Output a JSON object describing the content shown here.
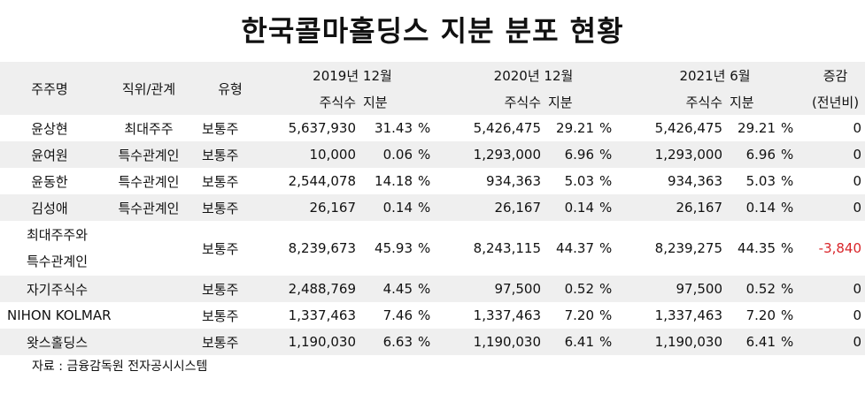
{
  "title": "한국콜마홀딩스 지분 분포 현황",
  "header": {
    "shareholder": "주주명",
    "position": "직위/관계",
    "type": "유형",
    "periods": [
      "2019년 12월",
      "2020년 12월",
      "2021년 6월"
    ],
    "shares": "주식수",
    "stake": "지분",
    "change_line1": "증감",
    "change_line2": "(전년비)"
  },
  "rows": [
    {
      "name": "윤상현",
      "relation": "최대주주",
      "type": "보통주",
      "s2019": "5,637,930",
      "p2019": "31.43",
      "u2019": "%",
      "s2020": "5,426,475",
      "p2020": "29.21",
      "u2020": "%",
      "s2021": "5,426,475",
      "p2021": "29.21",
      "u2021": "%",
      "change": "0"
    },
    {
      "name": "윤여원",
      "relation": "특수관계인",
      "type": "보통주",
      "s2019": "10,000",
      "p2019": "0.06",
      "u2019": "%",
      "s2020": "1,293,000",
      "p2020": "6.96",
      "u2020": "%",
      "s2021": "1,293,000",
      "p2021": "6.96",
      "u2021": "%",
      "change": "0"
    },
    {
      "name": "윤동한",
      "relation": "특수관계인",
      "type": "보통주",
      "s2019": "2,544,078",
      "p2019": "14.18",
      "u2019": "%",
      "s2020": "934,363",
      "p2020": "5.03",
      "u2020": "%",
      "s2021": "934,363",
      "p2021": "5.03",
      "u2021": "%",
      "change": "0"
    },
    {
      "name": "김성애",
      "relation": "특수관계인",
      "type": "보통주",
      "s2019": "26,167",
      "p2019": "0.14",
      "u2019": "%",
      "s2020": "26,167",
      "p2020": "0.14",
      "u2020": "%",
      "s2021": "26,167",
      "p2021": "0.14",
      "u2021": "%",
      "change": "0"
    },
    {
      "name_line1": "최대주주와",
      "name_line2": "특수관계인",
      "relation": "",
      "type": "보통주",
      "s2019": "8,239,673",
      "p2019": "45.93",
      "u2019": "%",
      "s2020": "8,243,115",
      "p2020": "44.37",
      "u2020": "%",
      "s2021": "8,239,275",
      "p2021": "44.35",
      "u2021": "%",
      "change": "-3,840"
    },
    {
      "name": "자기주식수",
      "relation": "",
      "type": "보통주",
      "s2019": "2,488,769",
      "p2019": "4.45",
      "u2019": "%",
      "s2020": "97,500",
      "p2020": "0.52",
      "u2020": "%",
      "s2021": "97,500",
      "p2021": "0.52",
      "u2021": "%",
      "change": "0"
    },
    {
      "name": "NIHON KOLMAR",
      "relation": "",
      "type": "보통주",
      "s2019": "1,337,463",
      "p2019": "7.46",
      "u2019": "%",
      "s2020": "1,337,463",
      "p2020": "7.20",
      "u2020": "%",
      "s2021": "1,337,463",
      "p2021": "7.20",
      "u2021": "%",
      "change": "0"
    },
    {
      "name": "왓스홀딩스",
      "relation": "",
      "type": "보통주",
      "s2019": "1,190,030",
      "p2019": "6.63",
      "u2019": "%",
      "s2020": "1,190,030",
      "p2020": "6.41",
      "u2020": "%",
      "s2021": "1,190,030",
      "p2021": "6.41",
      "u2021": "%",
      "change": "0"
    }
  ],
  "source": "자료 : 금융감독원 전자공시시스템",
  "colors": {
    "header_bg": "#efefef",
    "stripe_bg": "#efefef",
    "negative": "#d9252a"
  }
}
